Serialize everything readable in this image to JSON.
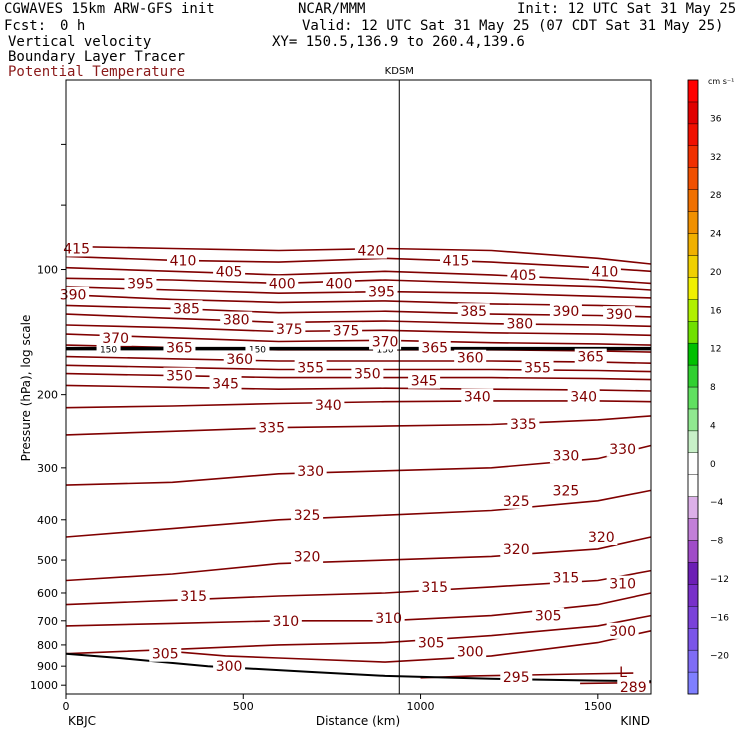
{
  "header": {
    "model": "CGWAVES 15km ARW-GFS init",
    "center": "NCAR/MMM",
    "init": "Init: 12 UTC Sat 31 May 25",
    "fcst_label": "Fcst:",
    "fcst_value": "0 h",
    "valid": "Valid: 12 UTC Sat 31 May 25 (07 CDT Sat 31 May 25)",
    "field1": "Vertical velocity",
    "xy": "XY= 150.5,136.9 to 260.4,139.6",
    "field2": "Boundary Layer Tracer",
    "field3": "Potential Temperature"
  },
  "colors": {
    "contour": "#800000",
    "frame": "#000000",
    "field3_label": "#8b1a1a"
  },
  "chart_data": {
    "type": "line",
    "title": "",
    "xlabel": "Distance (km)",
    "ylabel": "Pressure (hPa), log scale",
    "y_scale": "log",
    "xlim": [
      0,
      1650
    ],
    "ylim": [
      1050,
      35
    ],
    "x_ticks": [
      0,
      500,
      1000,
      1500
    ],
    "y_ticks": [
      100,
      200,
      300,
      400,
      500,
      600,
      700,
      800,
      900,
      1000
    ],
    "station_left": "KBJC",
    "station_mid": "KDSM",
    "station_mid_x": 940,
    "station_right": "KIND",
    "bl_height_label": "150",
    "bl_height_pressure": 155,
    "low_marker": "L",
    "series": [
      {
        "name": "415",
        "x": [
          0,
          300,
          600,
          900,
          1200,
          1500,
          1650
        ],
        "y": [
          88,
          89,
          90,
          89,
          90,
          94,
          97
        ]
      },
      {
        "name": "410",
        "x": [
          0,
          300,
          600,
          900,
          1200,
          1500,
          1650
        ],
        "y": [
          93,
          95,
          96,
          94,
          96,
          99,
          101
        ]
      },
      {
        "name": "405",
        "x": [
          0,
          300,
          600,
          900,
          1200,
          1500,
          1650
        ],
        "y": [
          99,
          101,
          103,
          101,
          103,
          106,
          108
        ]
      },
      {
        "name": "400",
        "x": [
          0,
          300,
          600,
          900,
          1200,
          1500,
          1650
        ],
        "y": [
          105,
          106,
          108,
          106,
          108,
          110,
          112
        ]
      },
      {
        "name": "395",
        "x": [
          0,
          300,
          600,
          900,
          1200,
          1500,
          1650
        ],
        "y": [
          110,
          112,
          114,
          113,
          114,
          116,
          117
        ]
      },
      {
        "name": "390",
        "x": [
          0,
          300,
          600,
          900,
          1200,
          1500,
          1650
        ],
        "y": [
          115,
          118,
          120,
          119,
          121,
          122,
          123
        ]
      },
      {
        "name": "385",
        "x": [
          0,
          300,
          600,
          900,
          1200,
          1500,
          1650
        ],
        "y": [
          122,
          124,
          127,
          126,
          128,
          129,
          130
        ]
      },
      {
        "name": "380",
        "x": [
          0,
          300,
          600,
          900,
          1200,
          1500,
          1650
        ],
        "y": [
          128,
          131,
          134,
          133,
          135,
          136,
          137
        ]
      },
      {
        "name": "375",
        "x": [
          0,
          300,
          600,
          900,
          1200,
          1500,
          1650
        ],
        "y": [
          136,
          138,
          141,
          140,
          142,
          143,
          144
        ]
      },
      {
        "name": "370",
        "x": [
          0,
          300,
          600,
          900,
          1200,
          1500,
          1650
        ],
        "y": [
          143,
          146,
          149,
          148,
          150,
          151,
          152
        ]
      },
      {
        "name": "365",
        "x": [
          0,
          300,
          600,
          900,
          1200,
          1500,
          1650
        ],
        "y": [
          152,
          154,
          156,
          156,
          156,
          157,
          158
        ]
      },
      {
        "name": "360",
        "x": [
          0,
          300,
          600,
          900,
          1200,
          1500,
          1650
        ],
        "y": [
          162,
          164,
          166,
          166,
          166,
          167,
          168
        ]
      },
      {
        "name": "355",
        "x": [
          0,
          300,
          600,
          900,
          1200,
          1500,
          1650
        ],
        "y": [
          170,
          172,
          174,
          174,
          174,
          175,
          176
        ]
      },
      {
        "name": "350",
        "x": [
          0,
          300,
          600,
          900,
          1200,
          1500,
          1650
        ],
        "y": [
          178,
          180,
          182,
          182,
          182,
          183,
          184
        ]
      },
      {
        "name": "345",
        "x": [
          0,
          300,
          600,
          900,
          1200,
          1500,
          1650
        ],
        "y": [
          190,
          192,
          194,
          193,
          194,
          195,
          196
        ]
      },
      {
        "name": "340",
        "x": [
          0,
          300,
          600,
          900,
          1200,
          1500,
          1650
        ],
        "y": [
          215,
          213,
          210,
          208,
          207,
          207,
          208
        ]
      },
      {
        "name": "335",
        "x": [
          0,
          300,
          600,
          900,
          1200,
          1500,
          1650
        ],
        "y": [
          250,
          245,
          240,
          238,
          236,
          230,
          225
        ]
      },
      {
        "name": "330",
        "x": [
          0,
          300,
          600,
          900,
          1200,
          1500,
          1650
        ],
        "y": [
          330,
          325,
          310,
          305,
          300,
          285,
          265
        ]
      },
      {
        "name": "325",
        "x": [
          0,
          300,
          600,
          900,
          1200,
          1500,
          1650
        ],
        "y": [
          440,
          420,
          400,
          390,
          380,
          360,
          340
        ]
      },
      {
        "name": "320",
        "x": [
          0,
          300,
          600,
          900,
          1200,
          1500,
          1650
        ],
        "y": [
          560,
          540,
          510,
          500,
          490,
          470,
          440
        ]
      },
      {
        "name": "315",
        "x": [
          0,
          300,
          600,
          900,
          1200,
          1500,
          1650
        ],
        "y": [
          640,
          625,
          610,
          600,
          580,
          560,
          530
        ]
      },
      {
        "name": "310",
        "x": [
          0,
          300,
          600,
          900,
          1200,
          1500,
          1650
        ],
        "y": [
          720,
          710,
          700,
          700,
          680,
          640,
          600
        ]
      },
      {
        "name": "305",
        "x": [
          0,
          300,
          600,
          900,
          1200,
          1500,
          1650
        ],
        "y": [
          840,
          820,
          800,
          790,
          760,
          720,
          680
        ]
      },
      {
        "name": "300",
        "x": [
          300,
          450,
          600,
          900,
          1200,
          1500,
          1650
        ],
        "y": [
          830,
          850,
          860,
          880,
          850,
          790,
          740
        ]
      },
      {
        "name": "295",
        "x": [
          1000,
          1150,
          1300,
          1450,
          1600
        ],
        "y": [
          960,
          950,
          945,
          940,
          935
        ]
      },
      {
        "name": "289",
        "x": [
          1450,
          1650
        ],
        "y": [
          990,
          985
        ]
      }
    ],
    "contour_labels": [
      {
        "text": "415",
        "x": 30,
        "y": 89
      },
      {
        "text": "410",
        "x": 330,
        "y": 95
      },
      {
        "text": "420",
        "x": 860,
        "y": 90
      },
      {
        "text": "415",
        "x": 1100,
        "y": 95
      },
      {
        "text": "390",
        "x": 20,
        "y": 115
      },
      {
        "text": "395",
        "x": 210,
        "y": 108
      },
      {
        "text": "405",
        "x": 460,
        "y": 101
      },
      {
        "text": "400",
        "x": 610,
        "y": 108
      },
      {
        "text": "400",
        "x": 770,
        "y": 108
      },
      {
        "text": "395",
        "x": 890,
        "y": 113
      },
      {
        "text": "405",
        "x": 1290,
        "y": 103
      },
      {
        "text": "410",
        "x": 1520,
        "y": 101
      },
      {
        "text": "385",
        "x": 340,
        "y": 124
      },
      {
        "text": "380",
        "x": 480,
        "y": 132
      },
      {
        "text": "375",
        "x": 630,
        "y": 139
      },
      {
        "text": "375",
        "x": 790,
        "y": 140
      },
      {
        "text": "385",
        "x": 1150,
        "y": 126
      },
      {
        "text": "380",
        "x": 1280,
        "y": 135
      },
      {
        "text": "390",
        "x": 1410,
        "y": 126
      },
      {
        "text": "390",
        "x": 1560,
        "y": 128
      },
      {
        "text": "370",
        "x": 140,
        "y": 146
      },
      {
        "text": "370",
        "x": 900,
        "y": 149
      },
      {
        "text": "365",
        "x": 320,
        "y": 154
      },
      {
        "text": "365",
        "x": 1040,
        "y": 154
      },
      {
        "text": "360",
        "x": 490,
        "y": 164
      },
      {
        "text": "360",
        "x": 1140,
        "y": 163
      },
      {
        "text": "365",
        "x": 1480,
        "y": 162
      },
      {
        "text": "355",
        "x": 690,
        "y": 172
      },
      {
        "text": "355",
        "x": 1330,
        "y": 172
      },
      {
        "text": "350",
        "x": 320,
        "y": 180
      },
      {
        "text": "350",
        "x": 850,
        "y": 178
      },
      {
        "text": "345",
        "x": 450,
        "y": 188
      },
      {
        "text": "345",
        "x": 1010,
        "y": 185
      },
      {
        "text": "340",
        "x": 740,
        "y": 212
      },
      {
        "text": "340",
        "x": 1160,
        "y": 202
      },
      {
        "text": "340",
        "x": 1460,
        "y": 202
      },
      {
        "text": "335",
        "x": 580,
        "y": 240
      },
      {
        "text": "335",
        "x": 1290,
        "y": 235
      },
      {
        "text": "330",
        "x": 690,
        "y": 305
      },
      {
        "text": "330",
        "x": 1410,
        "y": 280
      },
      {
        "text": "330",
        "x": 1570,
        "y": 270
      },
      {
        "text": "325",
        "x": 680,
        "y": 390
      },
      {
        "text": "325",
        "x": 1270,
        "y": 360
      },
      {
        "text": "325",
        "x": 1410,
        "y": 340
      },
      {
        "text": "320",
        "x": 680,
        "y": 490
      },
      {
        "text": "320",
        "x": 1270,
        "y": 470
      },
      {
        "text": "320",
        "x": 1510,
        "y": 440
      },
      {
        "text": "315",
        "x": 360,
        "y": 610
      },
      {
        "text": "315",
        "x": 1040,
        "y": 580
      },
      {
        "text": "315",
        "x": 1410,
        "y": 550
      },
      {
        "text": "310",
        "x": 620,
        "y": 700
      },
      {
        "text": "310",
        "x": 910,
        "y": 690
      },
      {
        "text": "310",
        "x": 1570,
        "y": 570
      },
      {
        "text": "305",
        "x": 280,
        "y": 840
      },
      {
        "text": "305",
        "x": 1030,
        "y": 790
      },
      {
        "text": "305",
        "x": 1360,
        "y": 680
      },
      {
        "text": "300",
        "x": 460,
        "y": 900
      },
      {
        "text": "300",
        "x": 1140,
        "y": 830
      },
      {
        "text": "300",
        "x": 1570,
        "y": 740
      },
      {
        "text": "295",
        "x": 1270,
        "y": 955
      },
      {
        "text": "289",
        "x": 1600,
        "y": 1010
      }
    ],
    "colorbar": {
      "unit": "cm s⁻¹",
      "values": [
        -20,
        -16,
        -12,
        -8,
        -4,
        0,
        4,
        8,
        12,
        16,
        20,
        24,
        28,
        32,
        36
      ],
      "colors": [
        "#7f7fff",
        "#7f6cf5",
        "#7b55e9",
        "#7a42d9",
        "#7830c9",
        "#6c1fb5",
        "#a04cc8",
        "#c27fd8",
        "#dcb0e8",
        "#ffffff",
        "#ffffff",
        "#c8f0c8",
        "#90e890",
        "#60e060",
        "#30d030",
        "#00c000",
        "#70e000",
        "#b0f000",
        "#f0f000",
        "#f0d000",
        "#f0b000",
        "#f09000",
        "#f07000",
        "#f05000",
        "#f03000",
        "#f01000",
        "#e00000",
        "#ff0000"
      ]
    }
  }
}
